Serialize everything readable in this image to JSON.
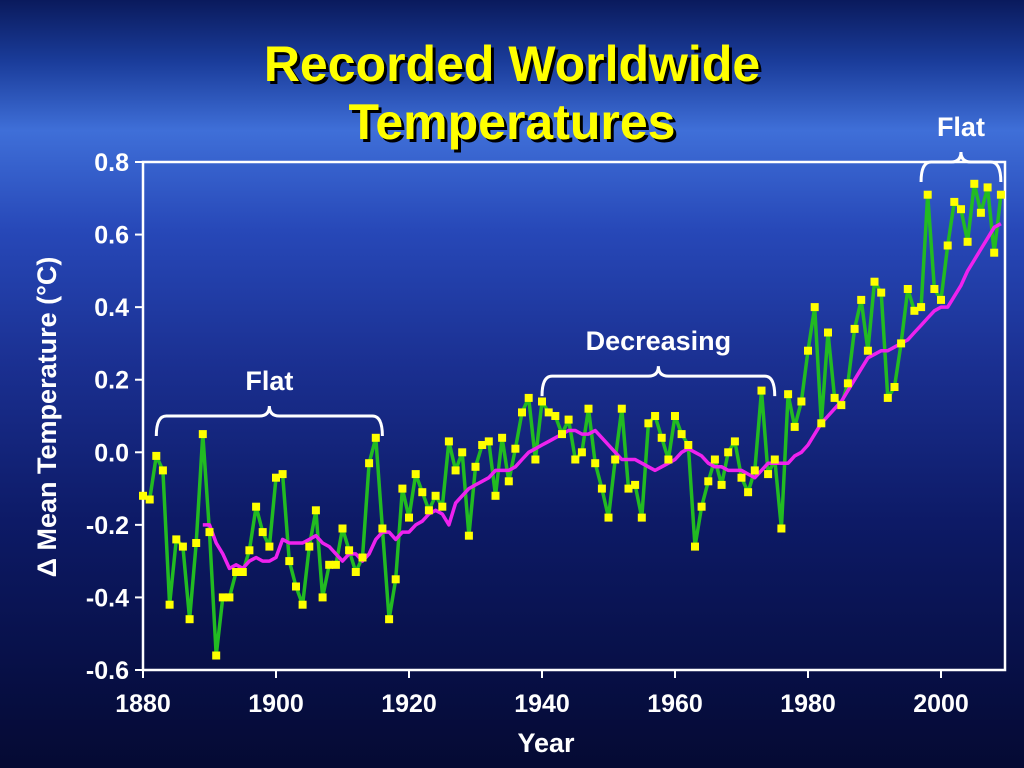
{
  "slide": {
    "title_line1": "Recorded Worldwide",
    "title_line2": "Temperatures"
  },
  "chart_data": {
    "type": "line",
    "title": "Recorded Worldwide Temperatures",
    "xlabel": "Year",
    "ylabel": "Δ Mean Temperature (°C)",
    "xlim": [
      1880,
      2009
    ],
    "ylim": [
      -0.6,
      0.8
    ],
    "xticks": [
      "1880",
      "1900",
      "1920",
      "1940",
      "1960",
      "1980",
      "2000"
    ],
    "yticks": [
      "-0.6",
      "-0.4",
      "-0.2",
      "0.0",
      "0.2",
      "0.4",
      "0.6",
      "0.8"
    ],
    "grid": false,
    "colors": {
      "annual_line": "#22bb22",
      "annual_marker": "#ffff00",
      "smoothed": "#ee22ee",
      "frame": "#ffffff",
      "title": "#ffff00"
    },
    "series": [
      {
        "kind": "annual",
        "x": [
          1880,
          1881,
          1882,
          1883,
          1884,
          1885,
          1886,
          1887,
          1888,
          1889,
          1890,
          1891,
          1892,
          1893,
          1894,
          1895,
          1896,
          1897,
          1898,
          1899,
          1900,
          1901,
          1902,
          1903,
          1904,
          1905,
          1906,
          1907,
          1908,
          1909,
          1910,
          1911,
          1912,
          1913,
          1914,
          1915,
          1916,
          1917,
          1918,
          1919,
          1920,
          1921,
          1922,
          1923,
          1924,
          1925,
          1926,
          1927,
          1928,
          1929,
          1930,
          1931,
          1932,
          1933,
          1934,
          1935,
          1936,
          1937,
          1938,
          1939,
          1940,
          1941,
          1942,
          1943,
          1944,
          1945,
          1946,
          1947,
          1948,
          1949,
          1950,
          1951,
          1952,
          1953,
          1954,
          1955,
          1956,
          1957,
          1958,
          1959,
          1960,
          1961,
          1962,
          1963,
          1964,
          1965,
          1966,
          1967,
          1968,
          1969,
          1970,
          1971,
          1972,
          1973,
          1974,
          1975,
          1976,
          1977,
          1978,
          1979,
          1980,
          1981,
          1982,
          1983,
          1984,
          1985,
          1986,
          1987,
          1988,
          1989,
          1990,
          1991,
          1992,
          1993,
          1994,
          1995,
          1996,
          1997,
          1998,
          1999,
          2000,
          2001,
          2002,
          2003,
          2004,
          2005,
          2006,
          2007,
          2008,
          2009
        ],
        "y": [
          -0.12,
          -0.13,
          -0.01,
          -0.05,
          -0.42,
          -0.24,
          -0.26,
          -0.46,
          -0.25,
          0.05,
          -0.22,
          -0.56,
          -0.4,
          -0.4,
          -0.33,
          -0.33,
          -0.27,
          -0.15,
          -0.22,
          -0.26,
          -0.07,
          -0.06,
          -0.3,
          -0.37,
          -0.42,
          -0.26,
          -0.16,
          -0.4,
          -0.31,
          -0.31,
          -0.21,
          -0.27,
          -0.33,
          -0.29,
          -0.03,
          0.04,
          -0.21,
          -0.46,
          -0.35,
          -0.1,
          -0.18,
          -0.06,
          -0.11,
          -0.16,
          -0.12,
          -0.15,
          0.03,
          -0.05,
          0.0,
          -0.23,
          -0.04,
          0.02,
          0.03,
          -0.12,
          0.04,
          -0.08,
          0.01,
          0.11,
          0.15,
          -0.02,
          0.14,
          0.11,
          0.1,
          0.05,
          0.09,
          -0.02,
          -0.0,
          0.12,
          -0.03,
          -0.1,
          -0.18,
          -0.02,
          0.12,
          -0.1,
          -0.09,
          -0.18,
          0.08,
          0.1,
          0.04,
          -0.02,
          0.1,
          0.05,
          0.02,
          -0.26,
          -0.15,
          -0.08,
          -0.02,
          -0.09,
          0.0,
          0.03,
          -0.07,
          -0.11,
          -0.05,
          0.17,
          -0.06,
          -0.02,
          -0.21,
          0.16,
          0.07,
          0.14,
          0.28,
          0.4,
          0.08,
          0.33,
          0.15,
          0.13,
          0.19,
          0.34,
          0.42,
          0.28,
          0.47,
          0.44,
          0.15,
          0.18,
          0.3,
          0.45,
          0.39,
          0.4,
          0.71,
          0.45,
          0.42,
          0.57,
          0.69,
          0.67,
          0.58,
          0.74,
          0.66,
          0.73,
          0.55,
          0.71
        ]
      },
      {
        "kind": "smoothed",
        "x": [
          1889,
          1890,
          1891,
          1892,
          1893,
          1894,
          1895,
          1896,
          1897,
          1898,
          1899,
          1900,
          1901,
          1902,
          1903,
          1904,
          1905,
          1906,
          1907,
          1908,
          1909,
          1910,
          1911,
          1912,
          1913,
          1914,
          1915,
          1916,
          1917,
          1918,
          1919,
          1920,
          1921,
          1922,
          1923,
          1924,
          1925,
          1926,
          1927,
          1928,
          1929,
          1930,
          1931,
          1932,
          1933,
          1934,
          1935,
          1936,
          1937,
          1938,
          1939,
          1940,
          1941,
          1942,
          1943,
          1944,
          1945,
          1946,
          1947,
          1948,
          1949,
          1950,
          1951,
          1952,
          1953,
          1954,
          1955,
          1956,
          1957,
          1958,
          1959,
          1960,
          1961,
          1962,
          1963,
          1964,
          1965,
          1966,
          1967,
          1968,
          1969,
          1970,
          1971,
          1972,
          1973,
          1974,
          1975,
          1976,
          1977,
          1978,
          1979,
          1980,
          1981,
          1982,
          1983,
          1984,
          1985,
          1986,
          1987,
          1988,
          1989,
          1990,
          1991,
          1992,
          1993,
          1994,
          1995,
          1996,
          1997,
          1998,
          1999,
          2000,
          2001,
          2002,
          2003,
          2004,
          2005,
          2006,
          2007,
          2008,
          2009
        ],
        "y": [
          -0.2,
          -0.2,
          -0.25,
          -0.28,
          -0.32,
          -0.31,
          -0.32,
          -0.3,
          -0.29,
          -0.3,
          -0.3,
          -0.29,
          -0.24,
          -0.25,
          -0.25,
          -0.25,
          -0.24,
          -0.23,
          -0.25,
          -0.26,
          -0.28,
          -0.3,
          -0.28,
          -0.28,
          -0.3,
          -0.28,
          -0.24,
          -0.22,
          -0.22,
          -0.24,
          -0.22,
          -0.22,
          -0.2,
          -0.19,
          -0.17,
          -0.16,
          -0.17,
          -0.2,
          -0.14,
          -0.12,
          -0.1,
          -0.09,
          -0.08,
          -0.07,
          -0.05,
          -0.05,
          -0.05,
          -0.04,
          -0.02,
          0.0,
          0.01,
          0.02,
          0.03,
          0.04,
          0.05,
          0.06,
          0.06,
          0.05,
          0.05,
          0.06,
          0.04,
          0.02,
          0.0,
          -0.02,
          -0.02,
          -0.02,
          -0.03,
          -0.04,
          -0.05,
          -0.04,
          -0.03,
          -0.02,
          0.0,
          0.01,
          0.0,
          -0.01,
          -0.03,
          -0.04,
          -0.04,
          -0.05,
          -0.05,
          -0.05,
          -0.06,
          -0.07,
          -0.05,
          -0.03,
          -0.03,
          -0.03,
          -0.03,
          -0.01,
          0.0,
          0.02,
          0.05,
          0.08,
          0.1,
          0.12,
          0.14,
          0.17,
          0.2,
          0.23,
          0.26,
          0.27,
          0.28,
          0.28,
          0.29,
          0.3,
          0.31,
          0.33,
          0.35,
          0.37,
          0.39,
          0.4,
          0.4,
          0.43,
          0.46,
          0.5,
          0.53,
          0.56,
          0.59,
          0.62,
          0.63
        ]
      }
    ],
    "annotations": [
      {
        "text": "Flat",
        "x_start": 1882,
        "x_end": 1916,
        "y": 0.1
      },
      {
        "text": "Decreasing",
        "x_start": 1940,
        "x_end": 1975,
        "y": 0.21
      },
      {
        "text": "Flat",
        "x_start": 1997,
        "x_end": 2009,
        "y": 0.8
      }
    ]
  }
}
